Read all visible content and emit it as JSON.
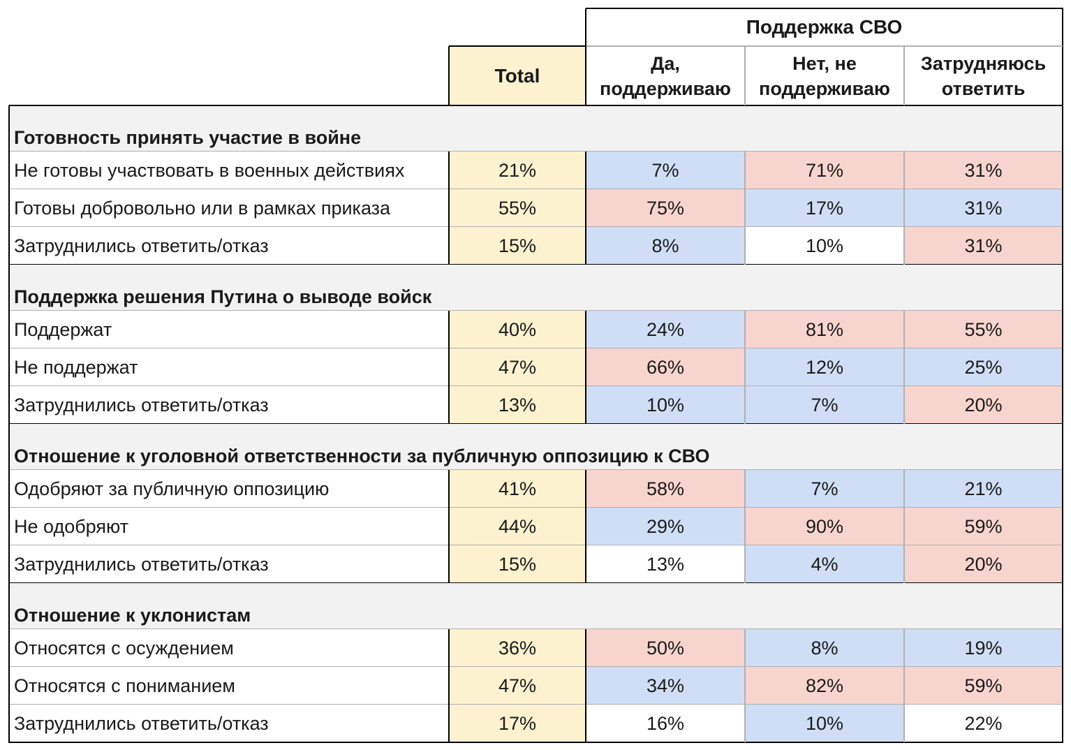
{
  "colors": {
    "total_fill": "#fdf2cf",
    "low_fill": "#cfdef6",
    "high_fill": "#f8d4cf",
    "neutral_fill": "#ffffff",
    "section_fill": "#f2f2f2"
  },
  "header": {
    "group_title": "Поддержка СВО",
    "total_label": "Total",
    "columns": [
      {
        "line1": "Да,",
        "line2": "поддерживаю"
      },
      {
        "line1": "Нет, не",
        "line2": "поддерживаю"
      },
      {
        "line1": "Затрудняюсь",
        "line2": "ответить"
      }
    ]
  },
  "sections": [
    {
      "title": "Готовность принять участие в войне",
      "rows": [
        {
          "label": "Не готовы участвовать в военных действиях",
          "total": "21%",
          "values": [
            "7%",
            "71%",
            "31%"
          ],
          "fills": [
            "low",
            "high",
            "high"
          ]
        },
        {
          "label": "Готовы добровольно или в рамках приказа",
          "total": "55%",
          "values": [
            "75%",
            "17%",
            "31%"
          ],
          "fills": [
            "high",
            "low",
            "low"
          ]
        },
        {
          "label": "Затруднились ответить/отказ",
          "total": "15%",
          "values": [
            "8%",
            "10%",
            "31%"
          ],
          "fills": [
            "low",
            "none",
            "high"
          ]
        }
      ]
    },
    {
      "title": "Поддержка решения Путина о выводе войск",
      "rows": [
        {
          "label": "Поддержат",
          "total": "40%",
          "values": [
            "24%",
            "81%",
            "55%"
          ],
          "fills": [
            "low",
            "high",
            "high"
          ]
        },
        {
          "label": "Не поддержат",
          "total": "47%",
          "values": [
            "66%",
            "12%",
            "25%"
          ],
          "fills": [
            "high",
            "low",
            "low"
          ]
        },
        {
          "label": "Затруднились ответить/отказ",
          "total": "13%",
          "values": [
            "10%",
            "7%",
            "20%"
          ],
          "fills": [
            "low",
            "low",
            "high"
          ]
        }
      ]
    },
    {
      "title": "Отношение к уголовной ответственности за публичную оппозицию к СВО",
      "rows": [
        {
          "label": "Одобряют за публичную оппозицию",
          "total": "41%",
          "values": [
            "58%",
            "7%",
            "21%"
          ],
          "fills": [
            "high",
            "low",
            "low"
          ]
        },
        {
          "label": "Не одобряют",
          "total": "44%",
          "values": [
            "29%",
            "90%",
            "59%"
          ],
          "fills": [
            "low",
            "high",
            "high"
          ]
        },
        {
          "label": "Затруднились ответить/отказ",
          "total": "15%",
          "values": [
            "13%",
            "4%",
            "20%"
          ],
          "fills": [
            "none",
            "low",
            "high"
          ]
        }
      ]
    },
    {
      "title": "Отношение к уклонистам",
      "rows": [
        {
          "label": "Относятся с осуждением",
          "total": "36%",
          "values": [
            "50%",
            "8%",
            "19%"
          ],
          "fills": [
            "high",
            "low",
            "low"
          ]
        },
        {
          "label": "Относятся с пониманием",
          "total": "47%",
          "values": [
            "34%",
            "82%",
            "59%"
          ],
          "fills": [
            "low",
            "high",
            "high"
          ]
        },
        {
          "label": "Затруднились ответить/отказ",
          "total": "17%",
          "values": [
            "16%",
            "10%",
            "22%"
          ],
          "fills": [
            "none",
            "low",
            "none"
          ]
        }
      ]
    }
  ]
}
